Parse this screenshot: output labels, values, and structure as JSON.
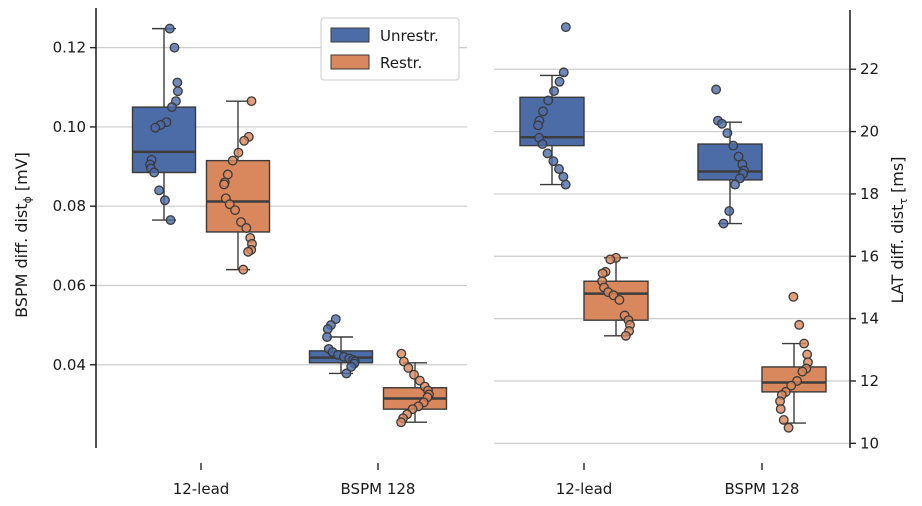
{
  "colors": {
    "unrestricted": "#4c6ca8",
    "restricted": "#d9875d",
    "grid": "#cccccc",
    "axis": "#262626",
    "whisker": "#3a3a3a"
  },
  "legend": {
    "items": [
      {
        "label": "Unrestr.",
        "color": "#4c6ca8"
      },
      {
        "label": "Restr.",
        "color": "#d9875d"
      }
    ],
    "placement": "top-right of left panel"
  },
  "chart_data": [
    {
      "type": "box",
      "ylabel_text": "BSPM diff. dist",
      "ylabel_sub": "ϕ",
      "ylabel_unit": " [mV]",
      "ylim": [
        0.019,
        0.13
      ],
      "yticks": [
        0.04,
        0.06,
        0.08,
        0.1,
        0.12
      ],
      "yticklabels": [
        "0.04",
        "0.06",
        "0.08",
        "0.10",
        "0.12"
      ],
      "grid": true,
      "categories": [
        "12-lead",
        "BSPM 128"
      ],
      "series": [
        {
          "name": "Unrestr.",
          "boxes": [
            {
              "q1": 0.0885,
              "median": 0.0937,
              "q3": 0.105,
              "whislo": 0.0765,
              "whishi": 0.1248,
              "points": [
                0.1248,
                0.12,
                0.1112,
                0.109,
                0.1065,
                0.105,
                0.1012,
                0.1005,
                0.0998,
                0.0917,
                0.0905,
                0.0895,
                0.0885,
                0.084,
                0.0815,
                0.0765
              ]
            },
            {
              "q1": 0.0405,
              "median": 0.0418,
              "q3": 0.0435,
              "whislo": 0.0378,
              "whishi": 0.047,
              "points": [
                0.0515,
                0.05,
                0.049,
                0.047,
                0.044,
                0.0432,
                0.0425,
                0.042,
                0.0416,
                0.0412,
                0.0408,
                0.0403,
                0.0395,
                0.0378
              ]
            }
          ]
        },
        {
          "name": "Restr.",
          "boxes": [
            {
              "q1": 0.0735,
              "median": 0.0812,
              "q3": 0.0915,
              "whislo": 0.064,
              "whishi": 0.1065,
              "points": [
                0.1065,
                0.0975,
                0.0965,
                0.0935,
                0.0915,
                0.088,
                0.086,
                0.0855,
                0.082,
                0.0805,
                0.079,
                0.076,
                0.0745,
                0.072,
                0.0705,
                0.069,
                0.0685,
                0.064
              ]
            },
            {
              "q1": 0.0288,
              "median": 0.0315,
              "q3": 0.0342,
              "whislo": 0.0255,
              "whishi": 0.0405,
              "points": [
                0.0428,
                0.0408,
                0.0392,
                0.0375,
                0.036,
                0.0345,
                0.0335,
                0.0325,
                0.0318,
                0.0305,
                0.0295,
                0.0288,
                0.0275,
                0.0265,
                0.0255
              ]
            }
          ]
        }
      ]
    },
    {
      "type": "box",
      "ylabel_text": "LAT diff. dist",
      "ylabel_sub": "τ",
      "ylabel_unit": " [ms]",
      "ylim": [
        9.85,
        23.9
      ],
      "yticks": [
        10,
        12,
        14,
        16,
        18,
        20,
        22
      ],
      "yticklabels": [
        "10",
        "12",
        "14",
        "16",
        "18",
        "20",
        "22"
      ],
      "grid": true,
      "yaxis_side": "right",
      "categories": [
        "12-lead",
        "BSPM 128"
      ],
      "series": [
        {
          "name": "Unrestr.",
          "boxes": [
            {
              "q1": 19.55,
              "median": 19.82,
              "q3": 21.1,
              "whislo": 18.3,
              "whishi": 21.8,
              "points": [
                23.35,
                21.9,
                21.6,
                21.3,
                21.0,
                20.65,
                20.35,
                20.2,
                19.8,
                19.6,
                19.3,
                19.05,
                18.8,
                18.55,
                18.3
              ]
            },
            {
              "q1": 18.45,
              "median": 18.72,
              "q3": 19.6,
              "whislo": 17.05,
              "whishi": 20.3,
              "points": [
                21.35,
                20.35,
                20.25,
                19.95,
                19.55,
                19.2,
                18.95,
                18.75,
                18.65,
                18.5,
                18.3,
                17.45,
                17.05
              ]
            }
          ]
        },
        {
          "name": "Restr.",
          "boxes": [
            {
              "q1": 13.95,
              "median": 14.8,
              "q3": 15.2,
              "whislo": 13.45,
              "whishi": 15.95,
              "points": [
                15.95,
                15.9,
                15.5,
                15.45,
                15.2,
                15.0,
                14.85,
                14.75,
                14.6,
                14.1,
                13.95,
                13.8,
                13.6,
                13.45
              ]
            },
            {
              "q1": 11.65,
              "median": 11.95,
              "q3": 12.45,
              "whislo": 10.65,
              "whishi": 13.2,
              "points": [
                14.7,
                13.8,
                13.2,
                12.85,
                12.6,
                12.4,
                12.3,
                12.0,
                11.85,
                11.65,
                11.55,
                11.35,
                11.1,
                10.75,
                10.5
              ]
            }
          ]
        }
      ]
    }
  ]
}
